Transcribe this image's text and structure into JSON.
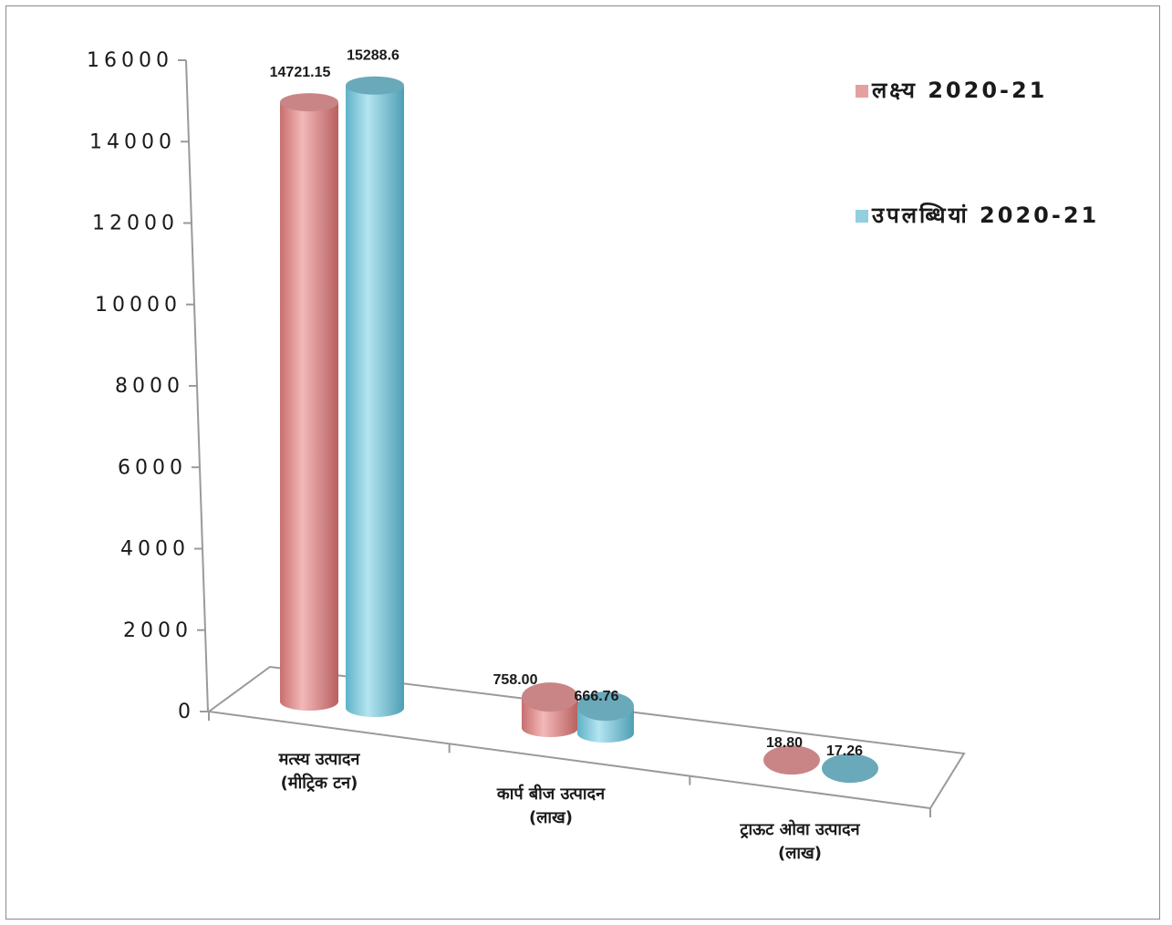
{
  "chart_data": {
    "type": "bar",
    "title": "",
    "xlabel": "",
    "ylabel": "",
    "ylim": [
      0,
      16000
    ],
    "yticks": [
      "0",
      "2000",
      "4000",
      "6000",
      "8000",
      "10000",
      "12000",
      "14000",
      "16000"
    ],
    "categories": [
      [
        "मत्स्य उत्पादन",
        "(मीट्रिक टन)"
      ],
      [
        "कार्प बीज उत्पादन",
        "(लाख)"
      ],
      [
        "ट्राऊट ओवा उत्पादन",
        "(लाख)"
      ]
    ],
    "series": [
      {
        "name": "लक्ष्य 2020-21",
        "values": [
          14721.15,
          758.0,
          18.8
        ],
        "labels": [
          "14721.15",
          "758.00",
          "18.80"
        ],
        "color": "#e6a0a0"
      },
      {
        "name": "उपलब्धियां 2020-21",
        "values": [
          15288.6,
          666.76,
          17.26
        ],
        "labels": [
          "15288.6",
          "666.76",
          "17.26"
        ],
        "color": "#92cfe0"
      }
    ],
    "legend_position": "top-right",
    "grid": false,
    "style": "3d-cylinder"
  }
}
